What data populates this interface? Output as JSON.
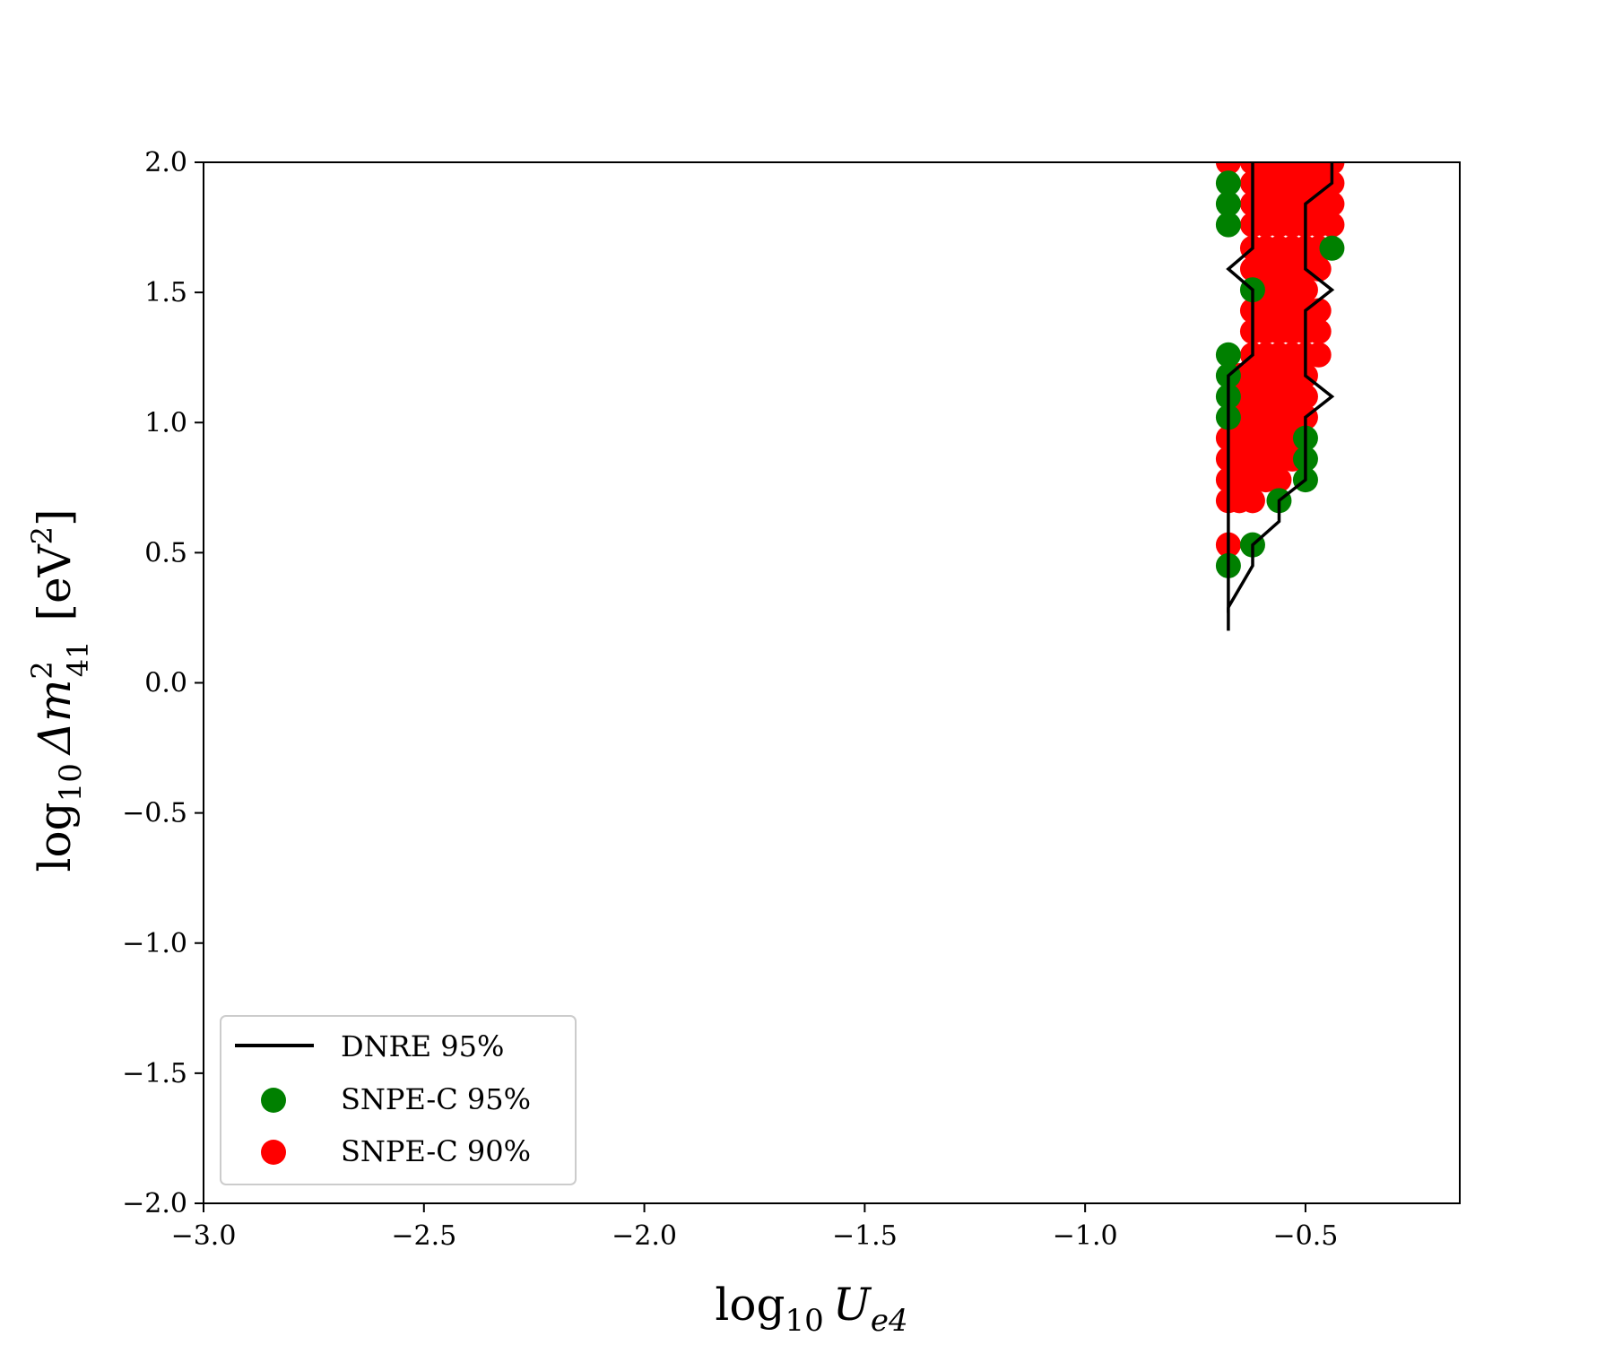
{
  "chart_data": {
    "type": "scatter",
    "xlabel": {
      "base": "log",
      "sub": "10",
      "sym": "U",
      "symsub": "e4"
    },
    "ylabel": {
      "base": "log",
      "sub": "10",
      "sym": "Δm",
      "sup": "2",
      "symsub": "41",
      "unit_pre": "[eV",
      "unit_sup": "2",
      "unit_post": "]"
    },
    "xlim": [
      -3.0,
      -0.15
    ],
    "ylim": [
      -2.0,
      2.0
    ],
    "xticks": [
      -3.0,
      -2.5,
      -2.0,
      -1.5,
      -1.0,
      -0.5
    ],
    "xtick_labels": [
      "−3.0",
      "−2.5",
      "−2.0",
      "−1.5",
      "−1.0",
      "−0.5"
    ],
    "yticks": [
      -2.0,
      -1.5,
      -1.0,
      -0.5,
      0.0,
      0.5,
      1.0,
      1.5,
      2.0
    ],
    "ytick_labels": [
      "−2.0",
      "−1.5",
      "−1.0",
      "−0.5",
      "0.0",
      "0.5",
      "1.0",
      "1.5",
      "2.0"
    ],
    "grid": false,
    "legend": {
      "placement": "lower-left",
      "entries": [
        {
          "label": "DNRE 95%",
          "kind": "line",
          "color": "#000000"
        },
        {
          "label": "SNPE-C 95%",
          "kind": "marker",
          "color": "#008000"
        },
        {
          "label": "SNPE-C 90%",
          "kind": "marker",
          "color": "#ff0000"
        }
      ]
    },
    "series": [
      {
        "name": "SNPE-C 95%",
        "kind": "scatter",
        "color": "#008000",
        "points": [
          [
            -0.675,
            1.92
          ],
          [
            -0.675,
            1.84
          ],
          [
            -0.675,
            1.76
          ],
          [
            -0.675,
            1.26
          ],
          [
            -0.675,
            1.18
          ],
          [
            -0.675,
            1.1
          ],
          [
            -0.675,
            1.02
          ],
          [
            -0.675,
            0.45
          ],
          [
            -0.62,
            0.53
          ],
          [
            -0.62,
            1.51
          ],
          [
            -0.56,
            0.7
          ],
          [
            -0.5,
            0.94
          ],
          [
            -0.5,
            0.86
          ],
          [
            -0.5,
            0.78
          ],
          [
            -0.44,
            1.67
          ]
        ]
      },
      {
        "name": "SNPE-C 90%",
        "kind": "scatter",
        "color": "#ff0000",
        "columns": [
          {
            "x": -0.675,
            "y": [
              2.0,
              0.94,
              0.86,
              0.78,
              0.7,
              0.53
            ]
          },
          {
            "x": -0.65,
            "y": [
              1.18,
              1.1,
              1.02,
              0.94,
              0.86,
              0.78,
              0.7
            ]
          },
          {
            "x": -0.62,
            "y": [
              2.0,
              1.92,
              1.84,
              1.76,
              1.67,
              1.59,
              1.43,
              1.35,
              1.26,
              1.18,
              1.1,
              1.02,
              0.94,
              0.86,
              0.78,
              0.7
            ]
          },
          {
            "x": -0.59,
            "y": [
              2.0,
              1.92,
              1.84,
              1.76,
              1.67,
              1.59,
              1.51,
              1.43,
              1.35,
              1.26,
              1.18,
              1.1,
              1.02,
              0.94,
              0.86,
              0.78
            ]
          },
          {
            "x": -0.56,
            "y": [
              2.0,
              1.92,
              1.84,
              1.76,
              1.67,
              1.59,
              1.51,
              1.43,
              1.35,
              1.26,
              1.18,
              1.1,
              1.02,
              0.94,
              0.86,
              0.78
            ]
          },
          {
            "x": -0.53,
            "y": [
              2.0,
              1.92,
              1.84,
              1.76,
              1.67,
              1.59,
              1.51,
              1.43,
              1.35,
              1.26,
              1.18,
              1.1,
              1.02,
              0.94,
              0.86
            ]
          },
          {
            "x": -0.5,
            "y": [
              2.0,
              1.92,
              1.84,
              1.76,
              1.67,
              1.59,
              1.51,
              1.43,
              1.35,
              1.26,
              1.18,
              1.1,
              1.02
            ]
          },
          {
            "x": -0.47,
            "y": [
              2.0,
              1.92,
              1.84,
              1.76,
              1.67,
              1.59,
              1.43,
              1.35,
              1.26
            ]
          },
          {
            "x": -0.44,
            "y": [
              2.0,
              1.92,
              1.84,
              1.76
            ]
          }
        ]
      },
      {
        "name": "DNRE 95%",
        "kind": "line",
        "color": "#000000",
        "points": [
          [
            -0.62,
            2.0
          ],
          [
            -0.62,
            1.67
          ],
          [
            -0.675,
            1.59
          ],
          [
            -0.62,
            1.51
          ],
          [
            -0.62,
            1.26
          ],
          [
            -0.675,
            1.18
          ],
          [
            -0.675,
            0.29
          ],
          [
            -0.62,
            0.45
          ],
          [
            -0.62,
            0.53
          ],
          [
            -0.56,
            0.62
          ],
          [
            -0.56,
            0.7
          ],
          [
            -0.5,
            0.78
          ],
          [
            -0.5,
            1.02
          ],
          [
            -0.44,
            1.1
          ],
          [
            -0.5,
            1.18
          ],
          [
            -0.5,
            1.43
          ],
          [
            -0.44,
            1.51
          ],
          [
            -0.5,
            1.59
          ],
          [
            -0.5,
            1.84
          ],
          [
            -0.44,
            1.92
          ],
          [
            -0.44,
            2.0
          ]
        ],
        "extra_points": [
          [
            -0.675,
            0.29
          ],
          [
            -0.675,
            0.2
          ]
        ]
      }
    ]
  }
}
